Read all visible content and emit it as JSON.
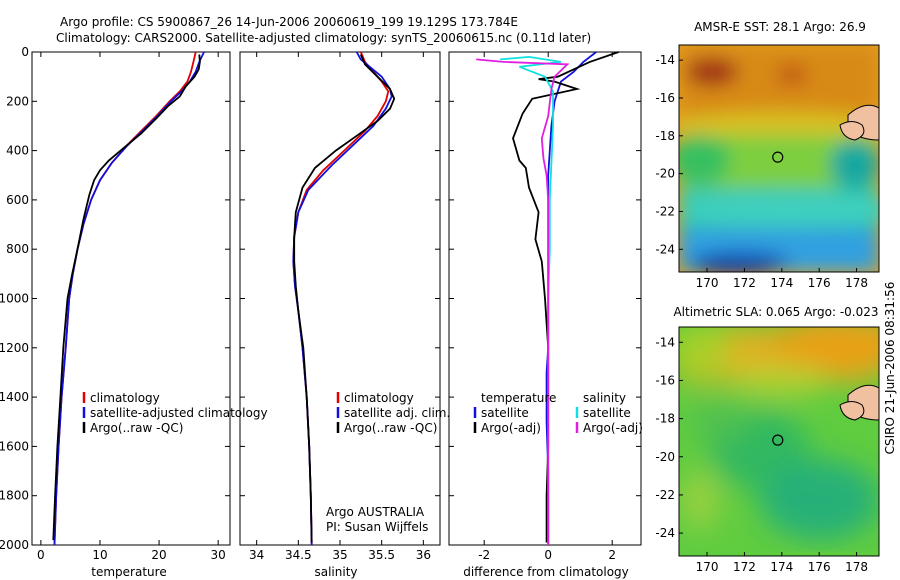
{
  "header": {
    "title_line1": "Argo profile: CS 5900867_26 14-Jun-2006 20060619_199 19.129S 173.784E",
    "title_line2": "Climatology: CARS2000. Satellite-adjusted climatology: synTS_20060615.nc (0.11d later)"
  },
  "side_stamp": "CSIRO 21-Jun-2006 08:31:56",
  "colors": {
    "red": "#e00000",
    "blue": "#1010e0",
    "black": "#000000",
    "cyan": "#10e0e0",
    "magenta": "#e020e0"
  },
  "chart_data": [
    {
      "id": "temperature",
      "type": "line",
      "xlabel": "temperature",
      "ylabel": "",
      "xlim": [
        -1.5,
        32
      ],
      "ylim": [
        2000,
        0
      ],
      "y_reversed": true,
      "x_ticks": [
        "0",
        "10",
        "20",
        "30"
      ],
      "y_ticks": [
        "0",
        "200",
        "400",
        "600",
        "800",
        "1000",
        "1200",
        "1400",
        "1600",
        "1800",
        "2000"
      ],
      "legend": [
        "climatology",
        "satellite-adjusted climatology",
        "Argo(..raw -QC)"
      ],
      "series": [
        {
          "name": "climatology",
          "color": "red",
          "points": [
            [
              26.2,
              0
            ],
            [
              25.8,
              40
            ],
            [
              25.4,
              80
            ],
            [
              24.8,
              120
            ],
            [
              23.5,
              160
            ],
            [
              21.8,
              200
            ],
            [
              19.5,
              260
            ],
            [
              17,
              320
            ],
            [
              14.5,
              380
            ],
            [
              12,
              450
            ],
            [
              10,
              520
            ],
            [
              8.5,
              600
            ],
            [
              7.2,
              700
            ],
            [
              6.2,
              800
            ],
            [
              5.4,
              900
            ],
            [
              4.8,
              1000
            ],
            [
              4.2,
              1200
            ],
            [
              3.5,
              1400
            ],
            [
              3,
              1600
            ],
            [
              2.6,
              1800
            ],
            [
              2.3,
              2000
            ]
          ]
        },
        {
          "name": "satellite-adjusted climatology",
          "color": "blue",
          "points": [
            [
              27.6,
              0
            ],
            [
              26.8,
              40
            ],
            [
              26.2,
              80
            ],
            [
              25.2,
              120
            ],
            [
              23.8,
              160
            ],
            [
              22,
              200
            ],
            [
              19.7,
              260
            ],
            [
              17.2,
              320
            ],
            [
              14.6,
              380
            ],
            [
              12,
              450
            ],
            [
              10,
              520
            ],
            [
              8.5,
              600
            ],
            [
              7.2,
              700
            ],
            [
              6.2,
              800
            ],
            [
              5.4,
              900
            ],
            [
              4.8,
              1000
            ],
            [
              4.2,
              1200
            ],
            [
              3.5,
              1400
            ],
            [
              3,
              1600
            ],
            [
              2.6,
              1800
            ],
            [
              2.3,
              2000
            ]
          ]
        },
        {
          "name": "Argo(..raw -QC)",
          "color": "black",
          "points": [
            [
              26.8,
              10
            ],
            [
              26.9,
              40
            ],
            [
              26.7,
              70
            ],
            [
              26,
              100
            ],
            [
              24.5,
              140
            ],
            [
              23.5,
              180
            ],
            [
              21.5,
              220
            ],
            [
              19.5,
              270
            ],
            [
              17,
              330
            ],
            [
              14,
              390
            ],
            [
              11.5,
              440
            ],
            [
              10,
              480
            ],
            [
              9,
              520
            ],
            [
              8.2,
              580
            ],
            [
              7.2,
              680
            ],
            [
              6.2,
              800
            ],
            [
              5.3,
              900
            ],
            [
              4.5,
              1000
            ],
            [
              3.8,
              1200
            ],
            [
              3.3,
              1400
            ],
            [
              2.8,
              1600
            ],
            [
              2.4,
              1800
            ],
            [
              2.1,
              1980
            ]
          ]
        }
      ]
    },
    {
      "id": "salinity",
      "type": "line",
      "xlabel": "salinity",
      "ylabel": "",
      "xlim": [
        33.8,
        36.2
      ],
      "ylim": [
        2000,
        0
      ],
      "y_reversed": true,
      "x_ticks": [
        "34",
        "34.5",
        "35",
        "35.5",
        "36"
      ],
      "legend": [
        "climatology",
        "satellite adj. clim.",
        "Argo(..raw -QC)"
      ],
      "annotation": [
        "Argo AUSTRALIA",
        "PI: Susan Wijffels"
      ],
      "series": [
        {
          "name": "climatology",
          "color": "red",
          "points": [
            [
              35.25,
              0
            ],
            [
              35.3,
              40
            ],
            [
              35.4,
              80
            ],
            [
              35.5,
              120
            ],
            [
              35.58,
              160
            ],
            [
              35.55,
              200
            ],
            [
              35.45,
              260
            ],
            [
              35.3,
              320
            ],
            [
              35.05,
              400
            ],
            [
              34.8,
              480
            ],
            [
              34.6,
              560
            ],
            [
              34.5,
              650
            ],
            [
              34.45,
              750
            ],
            [
              34.44,
              850
            ],
            [
              34.46,
              950
            ],
            [
              34.5,
              1050
            ],
            [
              34.55,
              1200
            ],
            [
              34.6,
              1400
            ],
            [
              34.63,
              1600
            ],
            [
              34.65,
              1800
            ],
            [
              34.66,
              2000
            ]
          ]
        },
        {
          "name": "satellite adj. clim.",
          "color": "blue",
          "points": [
            [
              35.2,
              0
            ],
            [
              35.25,
              30
            ],
            [
              35.5,
              100
            ],
            [
              35.6,
              150
            ],
            [
              35.62,
              180
            ],
            [
              35.55,
              230
            ],
            [
              35.4,
              300
            ],
            [
              35.15,
              380
            ],
            [
              34.9,
              460
            ],
            [
              34.62,
              560
            ],
            [
              34.5,
              650
            ],
            [
              34.45,
              750
            ],
            [
              34.44,
              850
            ],
            [
              34.46,
              950
            ],
            [
              34.5,
              1050
            ],
            [
              34.55,
              1200
            ],
            [
              34.6,
              1400
            ],
            [
              34.63,
              1600
            ],
            [
              34.65,
              1800
            ],
            [
              34.66,
              2000
            ]
          ]
        },
        {
          "name": "Argo(..raw -QC)",
          "color": "black",
          "points": [
            [
              35.25,
              10
            ],
            [
              35.3,
              50
            ],
            [
              35.45,
              100
            ],
            [
              35.6,
              150
            ],
            [
              35.65,
              190
            ],
            [
              35.6,
              230
            ],
            [
              35.45,
              280
            ],
            [
              35.2,
              340
            ],
            [
              34.95,
              400
            ],
            [
              34.7,
              470
            ],
            [
              34.55,
              550
            ],
            [
              34.47,
              650
            ],
            [
              34.45,
              750
            ],
            [
              34.45,
              850
            ],
            [
              34.47,
              950
            ],
            [
              34.5,
              1050
            ],
            [
              34.56,
              1200
            ],
            [
              34.6,
              1400
            ],
            [
              34.63,
              1600
            ],
            [
              34.65,
              1800
            ],
            [
              34.66,
              1990
            ]
          ]
        }
      ]
    },
    {
      "id": "difference",
      "type": "line",
      "xlabel": "difference from climatology",
      "ylabel": "",
      "xlim": [
        -3.1,
        2.9
      ],
      "ylim": [
        2000,
        0
      ],
      "y_reversed": true,
      "x_ticks": [
        "-2",
        "0",
        "2"
      ],
      "legend_left": {
        "heading": "temperature",
        "items": [
          "satellite",
          "Argo(-adj)"
        ]
      },
      "legend_right": {
        "heading": "salinity",
        "items": [
          "satellite",
          "Argo(-adj)"
        ]
      },
      "series": [
        {
          "name": "temperature satellite",
          "color": "blue",
          "points": [
            [
              1.5,
              0
            ],
            [
              1.1,
              40
            ],
            [
              0.8,
              80
            ],
            [
              0.4,
              120
            ],
            [
              0.3,
              160
            ],
            [
              0.2,
              200
            ],
            [
              0.1,
              300
            ],
            [
              0.05,
              400
            ],
            [
              0,
              500
            ],
            [
              0,
              700
            ],
            [
              0,
              900
            ],
            [
              0,
              1200
            ],
            [
              -0.05,
              1300
            ],
            [
              -0.05,
              1500
            ],
            [
              0,
              1700
            ],
            [
              0,
              2000
            ]
          ]
        },
        {
          "name": "temperature Argo(-adj)",
          "color": "black",
          "points": [
            [
              2.2,
              0
            ],
            [
              1.3,
              40
            ],
            [
              0.3,
              100
            ],
            [
              -0.3,
              110
            ],
            [
              0.2,
              120
            ],
            [
              0.9,
              150
            ],
            [
              -0.5,
              190
            ],
            [
              -0.8,
              250
            ],
            [
              -1.1,
              350
            ],
            [
              -0.9,
              440
            ],
            [
              -0.7,
              470
            ],
            [
              -0.6,
              550
            ],
            [
              -0.3,
              650
            ],
            [
              -0.4,
              760
            ],
            [
              -0.2,
              850
            ],
            [
              -0.1,
              1000
            ],
            [
              0,
              1200
            ],
            [
              0,
              1400
            ],
            [
              0,
              1600
            ],
            [
              -0.05,
              1800
            ],
            [
              -0.05,
              1990
            ]
          ]
        },
        {
          "name": "salinity satellite",
          "color": "cyan",
          "points": [
            [
              -1.5,
              30
            ],
            [
              -0.6,
              20
            ],
            [
              0.4,
              40
            ],
            [
              -0.9,
              60
            ],
            [
              -0.1,
              100
            ],
            [
              0.15,
              160
            ],
            [
              0.15,
              300
            ],
            [
              0.1,
              450
            ],
            [
              0.05,
              600
            ],
            [
              0.05,
              800
            ],
            [
              0,
              1000
            ],
            [
              0,
              1200
            ],
            [
              0,
              1500
            ],
            [
              0,
              1800
            ],
            [
              0,
              2000
            ]
          ]
        },
        {
          "name": "salinity Argo(-adj)",
          "color": "magenta",
          "points": [
            [
              -2.25,
              30
            ],
            [
              -1.4,
              40
            ],
            [
              0.6,
              50
            ],
            [
              0.2,
              100
            ],
            [
              0.1,
              150
            ],
            [
              0,
              260
            ],
            [
              -0.2,
              350
            ],
            [
              -0.15,
              430
            ],
            [
              -0.05,
              500
            ],
            [
              0,
              600
            ],
            [
              0,
              800
            ],
            [
              0,
              1000
            ],
            [
              0,
              1200
            ],
            [
              0,
              1400
            ],
            [
              0,
              1600
            ],
            [
              0,
              1800
            ],
            [
              0,
              2000
            ]
          ]
        }
      ]
    },
    {
      "id": "sst_map",
      "type": "heatmap",
      "title": "AMSR-E SST: 28.1 Argo: 26.9",
      "xlim": [
        168.5,
        179.2
      ],
      "ylim": [
        -25.2,
        -13.2
      ],
      "x_ticks": [
        "170",
        "172",
        "174",
        "176",
        "178"
      ],
      "y_ticks": [
        "-14",
        "-16",
        "-18",
        "-20",
        "-22",
        "-24"
      ],
      "marker": {
        "lon": 173.784,
        "lat": -19.129
      }
    },
    {
      "id": "sla_map",
      "type": "heatmap",
      "title": "Altimetric SLA: 0.065 Argo: -0.023",
      "xlim": [
        168.5,
        179.2
      ],
      "ylim": [
        -25.2,
        -13.2
      ],
      "x_ticks": [
        "170",
        "172",
        "174",
        "176",
        "178"
      ],
      "y_ticks": [
        "-14",
        "-16",
        "-18",
        "-20",
        "-22",
        "-24"
      ],
      "marker": {
        "lon": 173.784,
        "lat": -19.129
      }
    }
  ]
}
